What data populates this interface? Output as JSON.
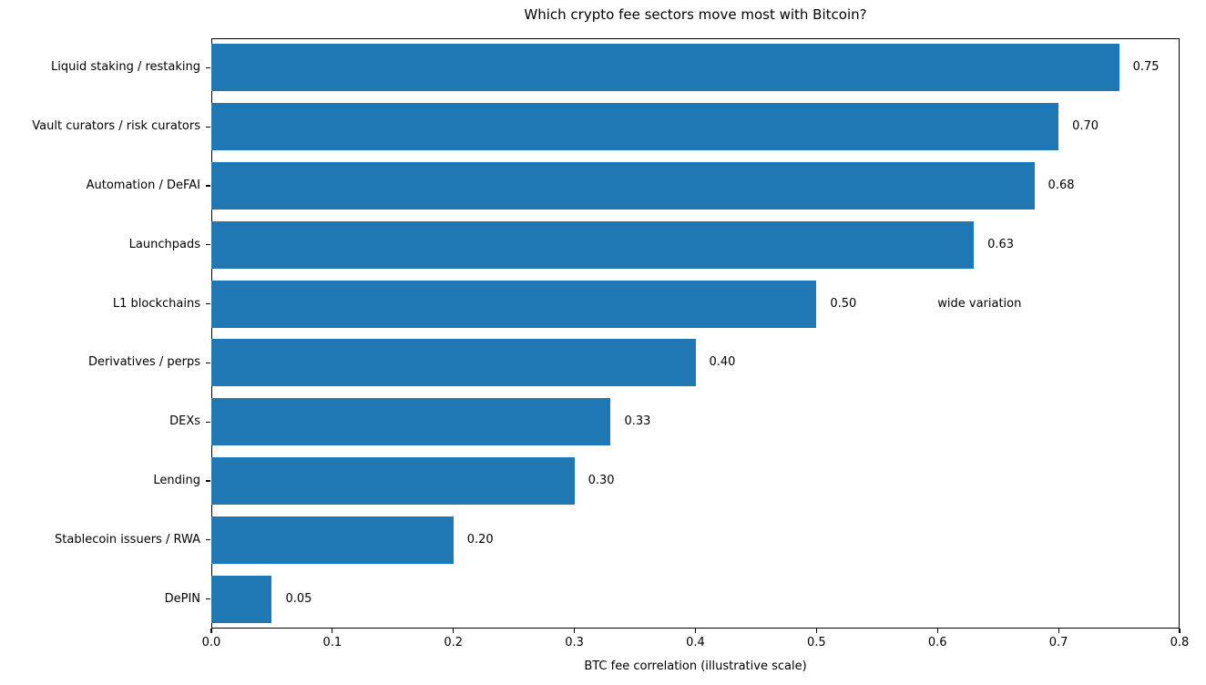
{
  "chart_data": {
    "type": "bar",
    "orientation": "horizontal",
    "title": "Which crypto fee sectors move most with Bitcoin?",
    "xlabel": "BTC fee correlation (illustrative scale)",
    "ylabel": "",
    "xlim": [
      0.0,
      0.8
    ],
    "xticks": [
      0.0,
      0.1,
      0.2,
      0.3,
      0.4,
      0.5,
      0.6,
      0.7,
      0.8
    ],
    "grid": false,
    "legend": false,
    "bar_color": "#1f77b4",
    "categories": [
      "Liquid staking / restaking",
      "Vault curators / risk curators",
      "Automation / DeFAI",
      "Launchpads",
      "L1 blockchains",
      "Derivatives / perps",
      "DEXs",
      "Lending",
      "Stablecoin issuers / RWA",
      "DePIN"
    ],
    "values": [
      0.75,
      0.7,
      0.68,
      0.63,
      0.5,
      0.4,
      0.33,
      0.3,
      0.2,
      0.05
    ],
    "value_labels": [
      "0.75",
      "0.70",
      "0.68",
      "0.63",
      "0.50",
      "0.40",
      "0.33",
      "0.30",
      "0.20",
      "0.05"
    ],
    "annotations": [
      {
        "text": "wide variation",
        "x": 0.6,
        "category_index": 4
      }
    ]
  }
}
